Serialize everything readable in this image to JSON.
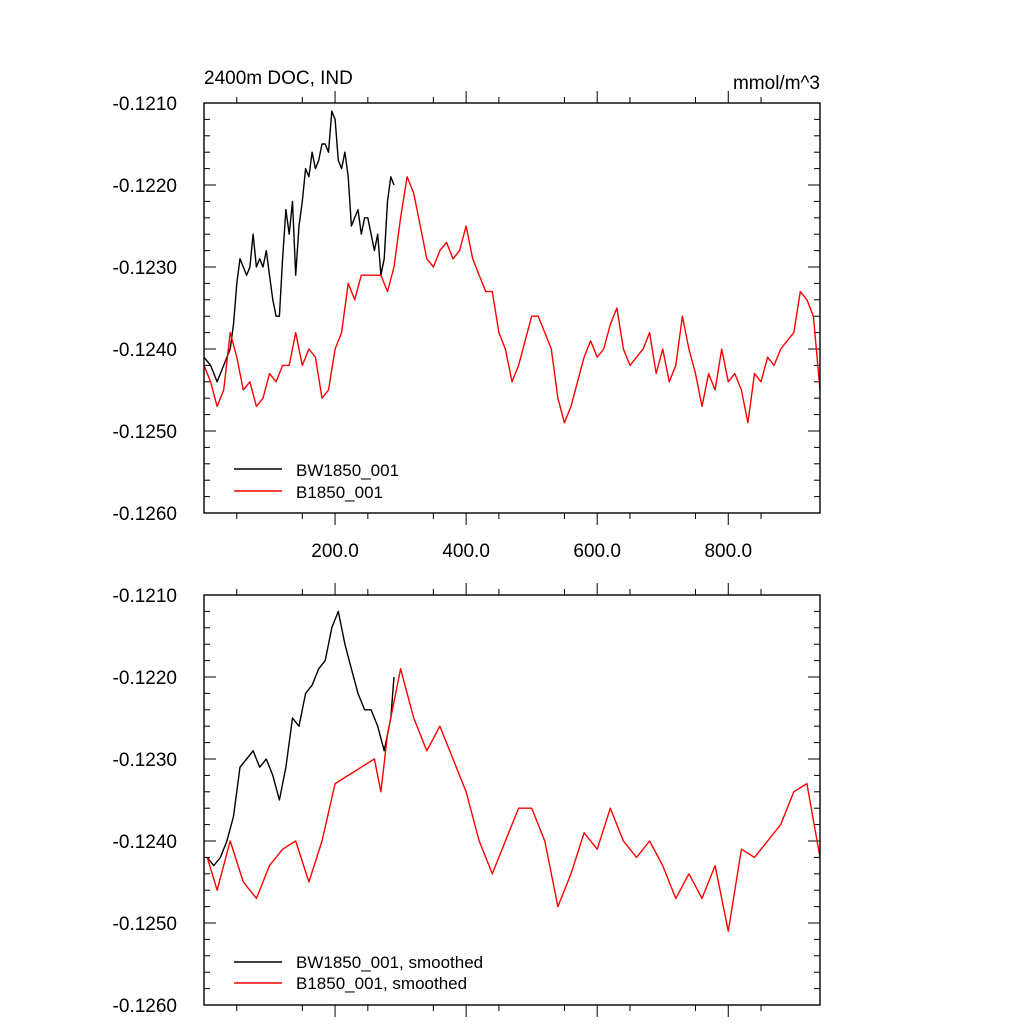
{
  "chart_data": [
    {
      "type": "line",
      "title": "2400m DOC, IND",
      "units": "mmol/m^3",
      "xlim": [
        0,
        940
      ],
      "ylim": [
        -0.126,
        -0.121
      ],
      "xticks": [
        200,
        400,
        600,
        800
      ],
      "xtick_labels": [
        "200.0",
        "400.0",
        "600.0",
        "800.0"
      ],
      "yticks": [
        -0.121,
        -0.122,
        -0.123,
        -0.124,
        -0.125,
        -0.126
      ],
      "ytick_labels": [
        "-0.1210",
        "-0.1220",
        "-0.1230",
        "-0.1240",
        "-0.1250",
        "-0.1260"
      ],
      "legend_position": "bottom-left",
      "series": [
        {
          "name": "BW1850_001",
          "color": "#000000",
          "x": [
            0,
            10,
            20,
            30,
            40,
            45,
            50,
            55,
            60,
            65,
            70,
            75,
            80,
            85,
            90,
            95,
            100,
            105,
            110,
            115,
            120,
            125,
            130,
            135,
            140,
            145,
            150,
            155,
            160,
            165,
            170,
            175,
            180,
            185,
            190,
            195,
            200,
            205,
            210,
            215,
            220,
            225,
            230,
            235,
            240,
            245,
            250,
            255,
            260,
            265,
            270,
            275,
            280,
            285,
            290
          ],
          "y": [
            -0.1241,
            -0.1242,
            -0.1244,
            -0.1242,
            -0.124,
            -0.1237,
            -0.1232,
            -0.1229,
            -0.123,
            -0.1231,
            -0.123,
            -0.1226,
            -0.123,
            -0.1229,
            -0.123,
            -0.1228,
            -0.1231,
            -0.1234,
            -0.1236,
            -0.1236,
            -0.1229,
            -0.1223,
            -0.1226,
            -0.1222,
            -0.1231,
            -0.1225,
            -0.1222,
            -0.1218,
            -0.1219,
            -0.1216,
            -0.1218,
            -0.1217,
            -0.1215,
            -0.1215,
            -0.1216,
            -0.1211,
            -0.1212,
            -0.1217,
            -0.1218,
            -0.1216,
            -0.1219,
            -0.1225,
            -0.1224,
            -0.1223,
            -0.1226,
            -0.1224,
            -0.1224,
            -0.1226,
            -0.1228,
            -0.1226,
            -0.1231,
            -0.1229,
            -0.1222,
            -0.1219,
            -0.122
          ]
        },
        {
          "name": "B1850_001",
          "color": "#ff0000",
          "x": [
            0,
            10,
            20,
            30,
            40,
            50,
            60,
            70,
            80,
            90,
            100,
            110,
            120,
            130,
            140,
            150,
            160,
            170,
            180,
            190,
            200,
            210,
            220,
            230,
            240,
            250,
            260,
            270,
            280,
            290,
            300,
            310,
            320,
            330,
            340,
            350,
            360,
            370,
            380,
            390,
            400,
            410,
            420,
            430,
            440,
            450,
            460,
            470,
            480,
            490,
            500,
            510,
            520,
            530,
            540,
            550,
            560,
            570,
            580,
            590,
            600,
            610,
            620,
            630,
            640,
            650,
            660,
            670,
            680,
            690,
            700,
            710,
            720,
            730,
            740,
            750,
            760,
            770,
            780,
            790,
            800,
            810,
            820,
            830,
            840,
            850,
            860,
            870,
            880,
            890,
            900,
            910,
            920,
            930,
            940
          ],
          "y": [
            -0.1242,
            -0.1244,
            -0.1247,
            -0.1245,
            -0.1238,
            -0.1241,
            -0.1245,
            -0.1244,
            -0.1247,
            -0.1246,
            -0.1243,
            -0.1244,
            -0.1242,
            -0.1242,
            -0.1238,
            -0.1242,
            -0.124,
            -0.1241,
            -0.1246,
            -0.1245,
            -0.124,
            -0.1238,
            -0.1232,
            -0.1234,
            -0.1231,
            -0.1231,
            -0.1231,
            -0.1231,
            -0.1233,
            -0.123,
            -0.1224,
            -0.1219,
            -0.1221,
            -0.1225,
            -0.1229,
            -0.123,
            -0.1228,
            -0.1227,
            -0.1229,
            -0.1228,
            -0.1225,
            -0.1229,
            -0.1231,
            -0.1233,
            -0.1233,
            -0.1238,
            -0.124,
            -0.1244,
            -0.1242,
            -0.1239,
            -0.1236,
            -0.1236,
            -0.1238,
            -0.124,
            -0.1246,
            -0.1249,
            -0.1247,
            -0.1244,
            -0.1241,
            -0.1239,
            -0.1241,
            -0.124,
            -0.1237,
            -0.1235,
            -0.124,
            -0.1242,
            -0.1241,
            -0.124,
            -0.1238,
            -0.1243,
            -0.124,
            -0.1244,
            -0.1242,
            -0.1236,
            -0.124,
            -0.1243,
            -0.1247,
            -0.1243,
            -0.1245,
            -0.124,
            -0.1244,
            -0.1243,
            -0.1245,
            -0.1249,
            -0.1243,
            -0.1244,
            -0.1241,
            -0.1242,
            -0.124,
            -0.1239,
            -0.1238,
            -0.1233,
            -0.1234,
            -0.1236,
            -0.1245
          ]
        }
      ]
    },
    {
      "type": "line",
      "xlim": [
        0,
        940
      ],
      "ylim": [
        -0.126,
        -0.121
      ],
      "xticks": [
        200,
        400,
        600,
        800
      ],
      "xtick_labels": [],
      "yticks": [
        -0.121,
        -0.122,
        -0.123,
        -0.124,
        -0.125,
        -0.126
      ],
      "ytick_labels": [
        "-0.1210",
        "-0.1220",
        "-0.1230",
        "-0.1240",
        "-0.1250",
        "-0.1260"
      ],
      "legend_position": "bottom-left",
      "series": [
        {
          "name": "BW1850_001, smoothed",
          "color": "#000000",
          "x": [
            5,
            15,
            25,
            35,
            45,
            55,
            65,
            75,
            85,
            95,
            105,
            115,
            125,
            135,
            145,
            155,
            165,
            175,
            185,
            195,
            205,
            215,
            225,
            235,
            245,
            255,
            265,
            275,
            285,
            290
          ],
          "y": [
            -0.1242,
            -0.1243,
            -0.1242,
            -0.124,
            -0.1237,
            -0.1231,
            -0.123,
            -0.1229,
            -0.1231,
            -0.123,
            -0.1232,
            -0.1235,
            -0.1231,
            -0.1225,
            -0.1226,
            -0.1222,
            -0.1221,
            -0.1219,
            -0.1218,
            -0.1214,
            -0.1212,
            -0.1216,
            -0.1219,
            -0.1222,
            -0.1224,
            -0.1224,
            -0.1226,
            -0.1229,
            -0.1225,
            -0.122
          ]
        },
        {
          "name": "B1850_001, smoothed",
          "color": "#ff0000",
          "x": [
            5,
            20,
            40,
            60,
            80,
            100,
            120,
            140,
            160,
            180,
            200,
            220,
            240,
            260,
            270,
            280,
            300,
            320,
            340,
            360,
            380,
            400,
            420,
            440,
            460,
            480,
            500,
            520,
            540,
            560,
            580,
            600,
            620,
            640,
            660,
            680,
            700,
            720,
            740,
            760,
            780,
            800,
            820,
            840,
            860,
            880,
            900,
            920,
            940
          ],
          "y": [
            -0.1242,
            -0.1246,
            -0.124,
            -0.1245,
            -0.1247,
            -0.1243,
            -0.1241,
            -0.124,
            -0.1245,
            -0.124,
            -0.1233,
            -0.1232,
            -0.1231,
            -0.123,
            -0.1234,
            -0.1227,
            -0.1219,
            -0.1225,
            -0.1229,
            -0.1226,
            -0.123,
            -0.1234,
            -0.124,
            -0.1244,
            -0.124,
            -0.1236,
            -0.1236,
            -0.124,
            -0.1248,
            -0.1244,
            -0.1239,
            -0.1241,
            -0.1236,
            -0.124,
            -0.1242,
            -0.124,
            -0.1243,
            -0.1247,
            -0.1244,
            -0.1247,
            -0.1243,
            -0.1251,
            -0.1241,
            -0.1242,
            -0.124,
            -0.1238,
            -0.1234,
            -0.1233,
            -0.1242
          ]
        }
      ]
    }
  ]
}
